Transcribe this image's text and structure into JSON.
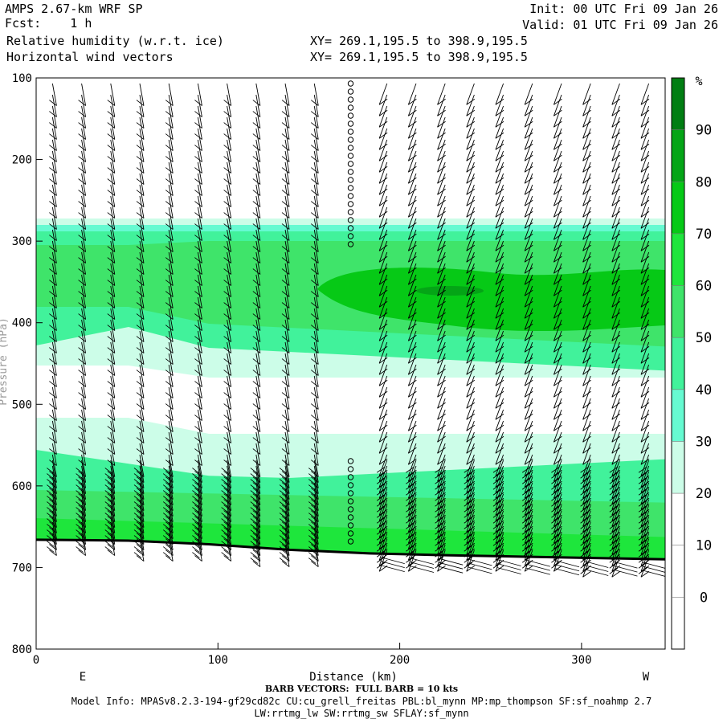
{
  "header": {
    "model": "AMPS 2.67-km WRF SP",
    "fcst_label": "Fcst:",
    "fcst_value": "1 h",
    "field1": "Relative humidity (w.r.t. ice)",
    "field2": "Horizontal wind vectors",
    "xy1": "XY= 269.1,195.5 to 398.9,195.5",
    "xy2": "XY= 269.1,195.5 to 398.9,195.5",
    "init": "Init: 00 UTC Fri 09 Jan 26",
    "valid": "Valid: 01 UTC Fri 09 Jan 26"
  },
  "footer": {
    "barb_note": "BARB VECTORS:  FULL BARB = 10 kts",
    "model_info": "Model Info: MPASv8.2.3-194-gf29cd82c CU:cu_grell_freitas PBL:bl_mynn MP:mp_thompson SF:sf_noahmp 2.7",
    "model_info2": "LW:rrtmg_lw SW:rrtmg_sw SFLAY:sf_mynn"
  },
  "chart_data": {
    "type": "heatmap",
    "title": "Relative humidity (w.r.t. ice) cross-section",
    "xlabel": "Distance (km)",
    "ylabel": "Pressure (hPa)",
    "x_ticks": [
      0,
      100,
      200,
      300
    ],
    "y_ticks": [
      100,
      200,
      300,
      400,
      500,
      600,
      700,
      800
    ],
    "xlim": [
      0,
      346
    ],
    "ylim": [
      100,
      800
    ],
    "left_end_label": "E",
    "right_end_label": "W",
    "colorbar": {
      "unit": "%",
      "labels": [
        90,
        80,
        70,
        60,
        50,
        40,
        30,
        20,
        10,
        0
      ],
      "colors": [
        "#ffffff",
        "#ffffff",
        "#ffffff",
        "#ccfde8",
        "#66fad1",
        "#41f29b",
        "#3fe46a",
        "#1ee63c",
        "#06c916",
        "#04a516",
        "#017e13"
      ]
    },
    "humidity_layers": [
      {
        "range": "60-70",
        "color": "#3fe46a",
        "p_top": 272,
        "p_bottom": 690
      },
      {
        "range": "70-80",
        "color": "#1ee63c",
        "p_top": 300,
        "p_bottom": 400
      },
      {
        "range": "80-90",
        "color": "#04a516",
        "p_top": 330,
        "p_bottom": 412
      },
      {
        "range": "90-100",
        "color": "#017e13",
        "p_top": 350,
        "p_bottom": 365
      }
    ],
    "terrain_surface_pressure": [
      [
        0,
        666
      ],
      [
        50,
        667
      ],
      [
        100,
        672
      ],
      [
        150,
        680
      ],
      [
        200,
        684
      ],
      [
        250,
        686
      ],
      [
        300,
        688
      ],
      [
        346,
        690
      ]
    ],
    "barb_columns_km": [
      9,
      25,
      41,
      57,
      73,
      89,
      105,
      121,
      137,
      153,
      173,
      193,
      209,
      225,
      241,
      257,
      273,
      289,
      305,
      321,
      337
    ],
    "calm_column_km": 173
  }
}
